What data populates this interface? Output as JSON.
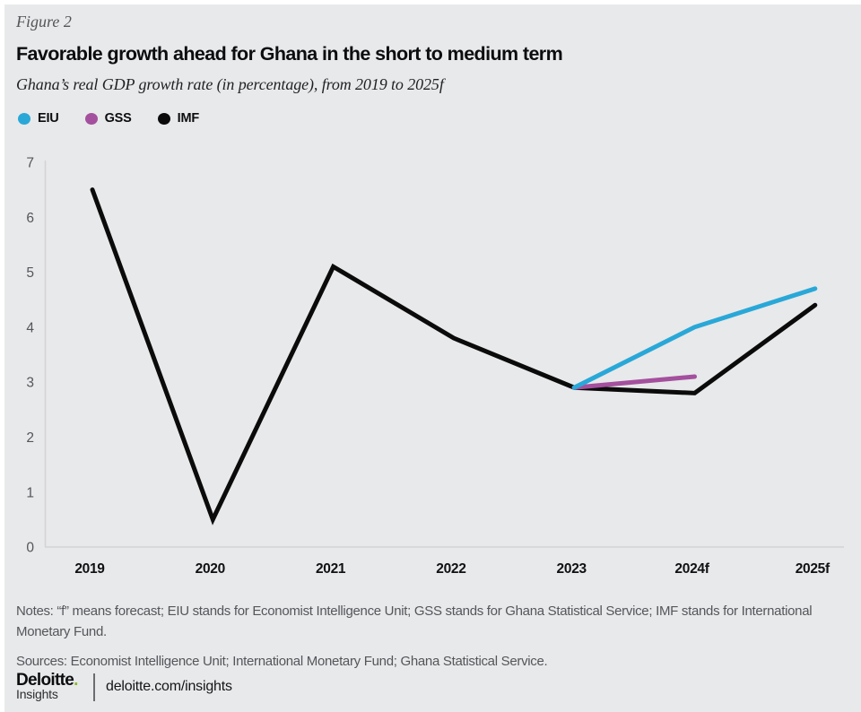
{
  "figure_label": "Figure 2",
  "title": "Favorable growth ahead for Ghana in the short to medium term",
  "subtitle": "Ghana’s real GDP growth rate (in percentage), from 2019 to 2025f",
  "colors": {
    "background": "#e8e9ea",
    "axis_line": "#d3d4d6",
    "tick_text": "#54565b",
    "eiu_blue": "#29a8d8",
    "gss_purple": "#a4509e",
    "imf_black": "#0b0b0b",
    "brand_green": "#86bc25"
  },
  "chart_data": {
    "type": "line",
    "categories": [
      "2019",
      "2020",
      "2021",
      "2022",
      "2023",
      "2024f",
      "2025f"
    ],
    "series": [
      {
        "name": "EIU",
        "color": "#29a8d8",
        "values": [
          null,
          null,
          null,
          null,
          2.9,
          4.0,
          4.7
        ]
      },
      {
        "name": "GSS",
        "color": "#a4509e",
        "values": [
          null,
          null,
          null,
          null,
          2.9,
          3.1,
          null
        ]
      },
      {
        "name": "IMF",
        "color": "#0b0b0b",
        "values": [
          6.5,
          0.5,
          5.1,
          3.8,
          2.9,
          2.8,
          4.4
        ]
      }
    ],
    "title": "Favorable growth ahead for Ghana in the short to medium term",
    "subtitle": "Ghana’s real GDP growth rate (in percentage), from 2019 to 2025f",
    "xlabel": "",
    "ylabel": "",
    "ylim": [
      0,
      7
    ],
    "yticks": [
      0,
      1,
      2,
      3,
      4,
      5,
      6,
      7
    ],
    "grid": false,
    "legend_position": "top-left"
  },
  "notes": "Notes: “f” means forecast; EIU stands for Economist Intelligence Unit; GSS stands for Ghana Statistical Service; IMF stands for International Monetary Fund.",
  "sources": "Sources: Economist Intelligence Unit; International Monetary Fund; Ghana Statistical Service.",
  "footer": {
    "brand": "Deloitte",
    "brand_period": ".",
    "brand_sub": "Insights",
    "url": "deloitte.com/insights"
  }
}
